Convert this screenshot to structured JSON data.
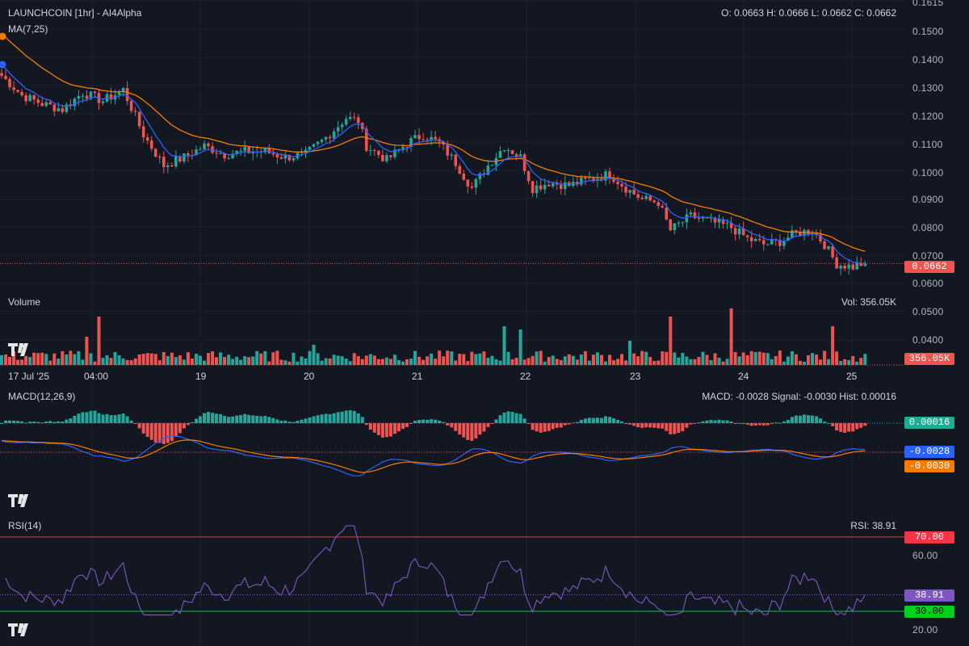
{
  "header": {
    "title": "LAUNCHCOIN [1hr] - AI4Alpha",
    "ohlc": "O: 0.0663 H: 0.0666 L: 0.0662 C: 0.0662",
    "ma_label": "MA(7,25)",
    "volume_label": "Volume",
    "volume_value": "Vol: 356.05K",
    "macd_label": "MACD(12,26,9)",
    "macd_values": "MACD: -0.0028 Signal: -0.0030 Hist: 0.00016",
    "rsi_label": "RSI(14)",
    "rsi_value": "RSI: 38.91"
  },
  "badges": {
    "price": "0.0662",
    "volume": "356.05K",
    "hist": "0.00016",
    "macd": "-0.0028",
    "signal": "-0.0030",
    "rsi": "38.91",
    "rsi_upper": "70.00",
    "rsi_lower": "30.00"
  },
  "price_axis": [
    "0.1615",
    "0.1500",
    "0.1400",
    "0.1300",
    "0.1200",
    "0.1100",
    "0.1000",
    "0.0900",
    "0.0800",
    "0.0700",
    "0.0600",
    "0.0500",
    "0.0400"
  ],
  "rsi_axis": [
    "60.00",
    "20.00"
  ],
  "time_axis": [
    "17 Jul '25",
    "04:00",
    "19",
    "20",
    "21",
    "22",
    "23",
    "24",
    "25"
  ],
  "colors": {
    "up": "#26a69a",
    "down": "#ef5350",
    "ma_fast": "#2962ff",
    "ma_slow": "#f57c00",
    "rsi_line": "#7e57c2",
    "rsi_upper": "#f23645",
    "rsi_lower": "#22ab94",
    "background": "#131722"
  },
  "chart_data": {
    "type": "candlestick",
    "price_anchors": [
      [
        0,
        0.133
      ],
      [
        5,
        0.126
      ],
      [
        10,
        0.123
      ],
      [
        15,
        0.121
      ],
      [
        20,
        0.127
      ],
      [
        25,
        0.124
      ],
      [
        30,
        0.128
      ],
      [
        35,
        0.112
      ],
      [
        40,
        0.101
      ],
      [
        45,
        0.104
      ],
      [
        50,
        0.108
      ],
      [
        55,
        0.105
      ],
      [
        60,
        0.106
      ],
      [
        65,
        0.106
      ],
      [
        70,
        0.104
      ],
      [
        75,
        0.105
      ],
      [
        80,
        0.111
      ],
      [
        85,
        0.118
      ],
      [
        88,
        0.117
      ],
      [
        90,
        0.108
      ],
      [
        95,
        0.103
      ],
      [
        100,
        0.109
      ],
      [
        104,
        0.112
      ],
      [
        108,
        0.109
      ],
      [
        112,
        0.102
      ],
      [
        116,
        0.093
      ],
      [
        120,
        0.101
      ],
      [
        124,
        0.108
      ],
      [
        128,
        0.104
      ],
      [
        131,
        0.093
      ],
      [
        135,
        0.095
      ],
      [
        140,
        0.094
      ],
      [
        145,
        0.096
      ],
      [
        150,
        0.098
      ],
      [
        154,
        0.093
      ],
      [
        158,
        0.089
      ],
      [
        162,
        0.088
      ],
      [
        165,
        0.078
      ],
      [
        170,
        0.083
      ],
      [
        175,
        0.081
      ],
      [
        180,
        0.079
      ],
      [
        184,
        0.075
      ],
      [
        188,
        0.073
      ],
      [
        192,
        0.074
      ],
      [
        196,
        0.077
      ],
      [
        200,
        0.078
      ],
      [
        203,
        0.073
      ],
      [
        206,
        0.066
      ],
      [
        210,
        0.065
      ],
      [
        213,
        0.0665
      ]
    ],
    "volume_spikes": [
      [
        24,
        0.06
      ],
      [
        21,
        0.035
      ],
      [
        77,
        0.025
      ],
      [
        124,
        0.048
      ],
      [
        128,
        0.044
      ],
      [
        155,
        0.03
      ],
      [
        165,
        0.06
      ],
      [
        180,
        0.07
      ],
      [
        205,
        0.048
      ]
    ],
    "ma_fast_start": 0.138,
    "ma_slow_start": 0.149,
    "ma_slow_end": 0.0705,
    "last_close": 0.0662,
    "last_volume": "356.05K",
    "macd": {
      "macd": -0.0028,
      "signal": -0.003,
      "hist": 0.00016
    },
    "rsi": {
      "value": 38.91,
      "upper": 70,
      "lower": 30,
      "visible_ticks": [
        60,
        20
      ]
    },
    "x_ticks": [
      "17 Jul '25",
      "04:00",
      "19",
      "20",
      "21",
      "22",
      "23",
      "24",
      "25"
    ]
  }
}
